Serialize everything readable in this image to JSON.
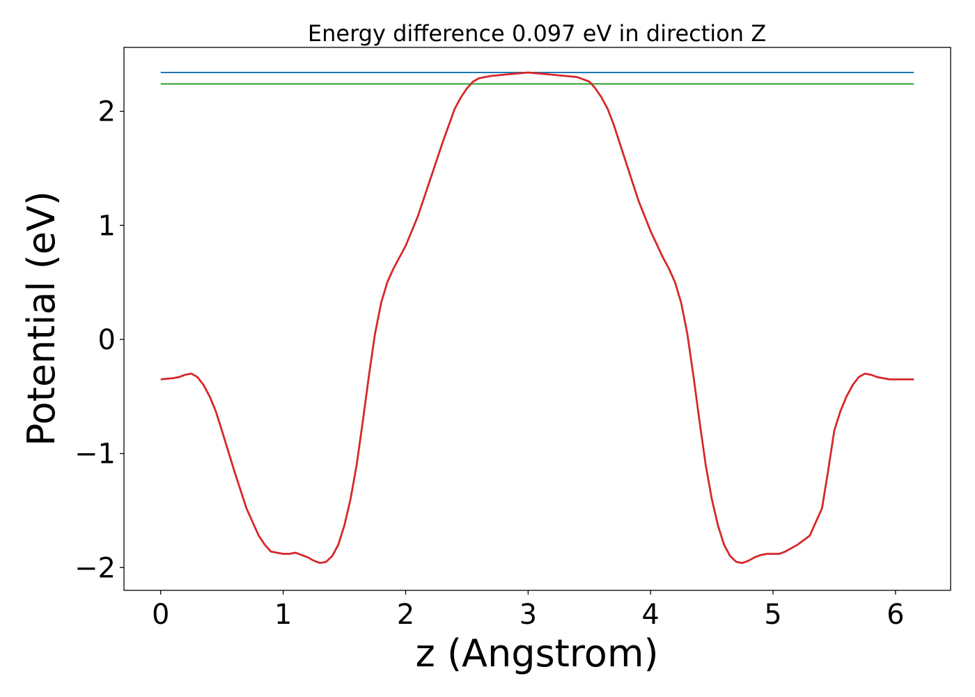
{
  "chart_data": {
    "type": "line",
    "title": "Energy difference 0.097 eV in direction Z",
    "xlabel": "z (Angstrom)",
    "ylabel": "Potential (eV)",
    "xlim": [
      -0.3,
      6.45
    ],
    "ylim": [
      -2.2,
      2.56
    ],
    "xticks": [
      0,
      1,
      2,
      3,
      4,
      5,
      6
    ],
    "xtick_labels": [
      "0",
      "1",
      "2",
      "3",
      "4",
      "5",
      "6"
    ],
    "yticks": [
      -2,
      -1,
      0,
      1,
      2
    ],
    "ytick_labels": [
      "−2",
      "−1",
      "0",
      "1",
      "2"
    ],
    "grid": false,
    "series": [
      {
        "color": "#1f77b4",
        "x": [
          0,
          6.15
        ],
        "y": [
          2.34,
          2.34
        ]
      },
      {
        "color": "#2ca02c",
        "x": [
          0,
          6.15
        ],
        "y": [
          2.24,
          2.24
        ]
      },
      {
        "color": "#d62728",
        "x": [
          0,
          0.1,
          0.15,
          0.2,
          0.25,
          0.3,
          0.35,
          0.4,
          0.45,
          0.5,
          0.6,
          0.7,
          0.75,
          0.8,
          0.85,
          0.9,
          1.0,
          1.05,
          1.1,
          1.2,
          1.25,
          1.3,
          1.35,
          1.4,
          1.45,
          1.5,
          1.55,
          1.6,
          1.65,
          1.7,
          1.75,
          1.8,
          1.85,
          1.9,
          1.95,
          2.0,
          2.05,
          2.1,
          2.2,
          2.3,
          2.4,
          2.45,
          2.5,
          2.55,
          2.6,
          2.65,
          2.7,
          2.8,
          2.9,
          3.0,
          3.1,
          3.2,
          3.3,
          3.4,
          3.5,
          3.55,
          3.6,
          3.65,
          3.7,
          3.8,
          3.9,
          4.0,
          4.1,
          4.15,
          4.2,
          4.25,
          4.3,
          4.35,
          4.4,
          4.45,
          4.5,
          4.55,
          4.6,
          4.65,
          4.7,
          4.75,
          4.8,
          4.85,
          4.9,
          4.95,
          5.0,
          5.05,
          5.1,
          5.2,
          5.3,
          5.35,
          5.4,
          5.45,
          5.5,
          5.55,
          5.6,
          5.65,
          5.7,
          5.75,
          5.8,
          5.85,
          5.9,
          5.95,
          6.0,
          6.05,
          6.15
        ],
        "y": [
          -0.35,
          -0.34,
          -0.33,
          -0.31,
          -0.3,
          -0.33,
          -0.4,
          -0.5,
          -0.63,
          -0.8,
          -1.15,
          -1.48,
          -1.6,
          -1.72,
          -1.8,
          -1.86,
          -1.88,
          -1.88,
          -1.87,
          -1.91,
          -1.94,
          -1.96,
          -1.95,
          -1.9,
          -1.8,
          -1.63,
          -1.4,
          -1.1,
          -0.72,
          -0.32,
          0.05,
          0.32,
          0.5,
          0.62,
          0.72,
          0.82,
          0.95,
          1.08,
          1.4,
          1.72,
          2.02,
          2.12,
          2.2,
          2.26,
          2.29,
          2.3,
          2.31,
          2.32,
          2.33,
          2.34,
          2.33,
          2.32,
          2.31,
          2.3,
          2.26,
          2.2,
          2.12,
          2.02,
          1.88,
          1.55,
          1.22,
          0.95,
          0.72,
          0.62,
          0.5,
          0.32,
          0.05,
          -0.32,
          -0.72,
          -1.1,
          -1.4,
          -1.63,
          -1.8,
          -1.9,
          -1.95,
          -1.96,
          -1.94,
          -1.91,
          -1.89,
          -1.88,
          -1.88,
          -1.88,
          -1.86,
          -1.8,
          -1.72,
          -1.6,
          -1.48,
          -1.15,
          -0.8,
          -0.63,
          -0.5,
          -0.4,
          -0.33,
          -0.3,
          -0.31,
          -0.33,
          -0.34,
          -0.35,
          -0.35,
          -0.35,
          -0.35
        ]
      }
    ]
  }
}
